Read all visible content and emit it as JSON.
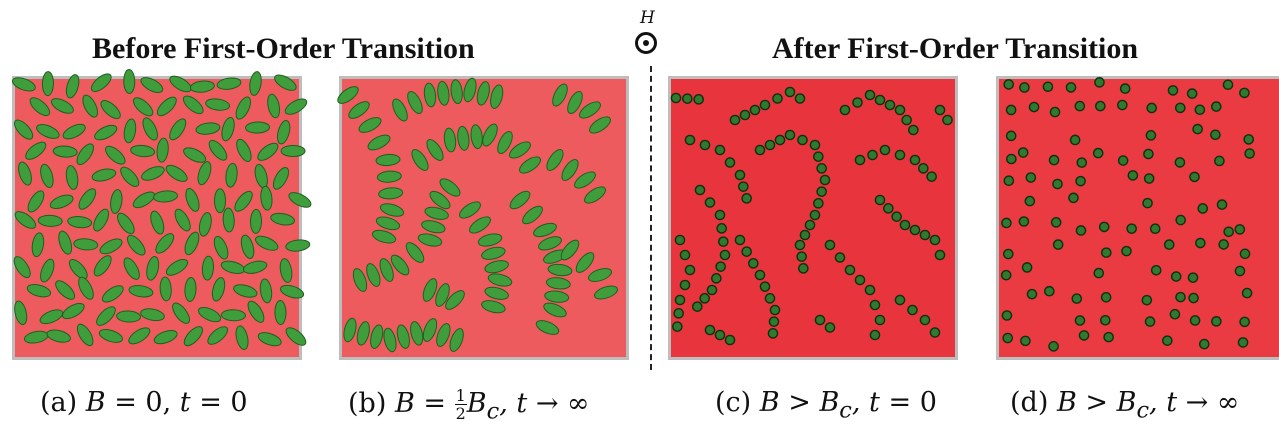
{
  "headers": {
    "before": "Before First-Order Transition",
    "after": "After First-Order Transition",
    "field_symbol": "H"
  },
  "captions": {
    "a": {
      "label": "(a)",
      "eq1": "B",
      "op1": " = 0, ",
      "eq2": "t",
      "op2": " =  0"
    },
    "b": {
      "label": "(b)",
      "eq1": "B",
      "op1": " = ",
      "num": "1",
      "den": "2",
      "eq2": "B",
      "sub": "c",
      "eq3": ", t",
      "op2": " → ∞"
    },
    "c": {
      "label": "(c)",
      "eq1": "B",
      "op1": " > ",
      "eq2": "B",
      "sub": "c",
      "eq3": ", t",
      "op2": " = 0"
    },
    "d": {
      "label": "(d)",
      "eq1": "B",
      "op1": " > ",
      "eq2": "B",
      "sub": "c",
      "eq3": ", t",
      "op2": " → ∞"
    }
  },
  "colors": {
    "panel_before": "#ee5b5f",
    "panel_after": "#e8343c",
    "ellipse_fill": "#3f9e3b",
    "ellipse_stroke": "#1f5e1f",
    "dot_fill": "#2f7a2c",
    "dot_stroke": "#0f2e10"
  },
  "icons": {
    "field_direction": "circle-dot-out-of-page-icon"
  }
}
